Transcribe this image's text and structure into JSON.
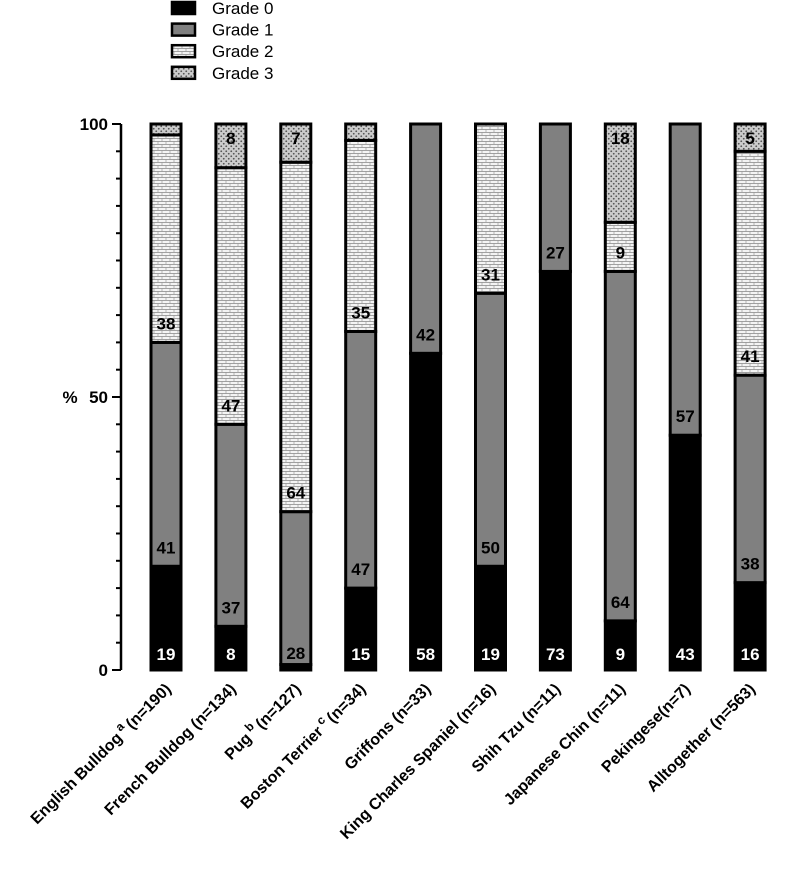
{
  "chart_data": {
    "type": "bar",
    "stacked": true,
    "title": "",
    "ylabel": "%",
    "xlabel": "",
    "ylim": [
      0,
      100
    ],
    "yticks": [
      0,
      50,
      100
    ],
    "categories": [
      {
        "name": "English Bulldog",
        "sup": "a",
        "n": "(n=190)"
      },
      {
        "name": "French Bulldog",
        "sup": "",
        "n": "(n=134)"
      },
      {
        "name": "Pug",
        "sup": "b",
        "n": "(n=127)"
      },
      {
        "name": "Boston Terrier",
        "sup": "c",
        "n": "(n=34)"
      },
      {
        "name": "Griffons",
        "sup": "",
        "n": "(n=33)"
      },
      {
        "name": "King Charles Spaniel",
        "sup": "",
        "n": "(n=16)"
      },
      {
        "name": "Shih Tzu",
        "sup": "",
        "n": "(n=11)"
      },
      {
        "name": "Japanese Chin",
        "sup": "",
        "n": "(n=11)"
      },
      {
        "name": "Pekingese",
        "sup": "",
        "n": "(n=7)",
        "nogap": true
      },
      {
        "name": "Alltogether",
        "sup": "",
        "n": "(n=563)"
      }
    ],
    "series": [
      {
        "name": "Grade 0",
        "pattern": "solid-black",
        "values": [
          19,
          8,
          1,
          15,
          58,
          19,
          73,
          9,
          43,
          16
        ],
        "labels": [
          "19",
          "8",
          "",
          "15",
          "58",
          "19",
          "73",
          "9",
          "43",
          "16"
        ]
      },
      {
        "name": "Grade 1",
        "pattern": "solid-gray",
        "values": [
          41,
          37,
          28,
          47,
          42,
          50,
          27,
          64,
          57,
          38
        ],
        "labels": [
          "41",
          "37",
          "28",
          "47",
          "42",
          "50",
          "27",
          "64",
          "57",
          "38"
        ]
      },
      {
        "name": "Grade 2",
        "pattern": "brick",
        "values": [
          38,
          47,
          64,
          35,
          0,
          31,
          0,
          9,
          0,
          41
        ],
        "labels": [
          "38",
          "47",
          "64",
          "35",
          "",
          "31",
          "",
          "9",
          "",
          "41"
        ]
      },
      {
        "name": "Grade 3",
        "pattern": "dots",
        "values": [
          2,
          8,
          7,
          3,
          0,
          0,
          0,
          18,
          0,
          5
        ],
        "labels": [
          "",
          "8",
          "7",
          "",
          "",
          "",
          "",
          "18",
          "",
          "5"
        ]
      }
    ],
    "legend_position": "top-left"
  }
}
